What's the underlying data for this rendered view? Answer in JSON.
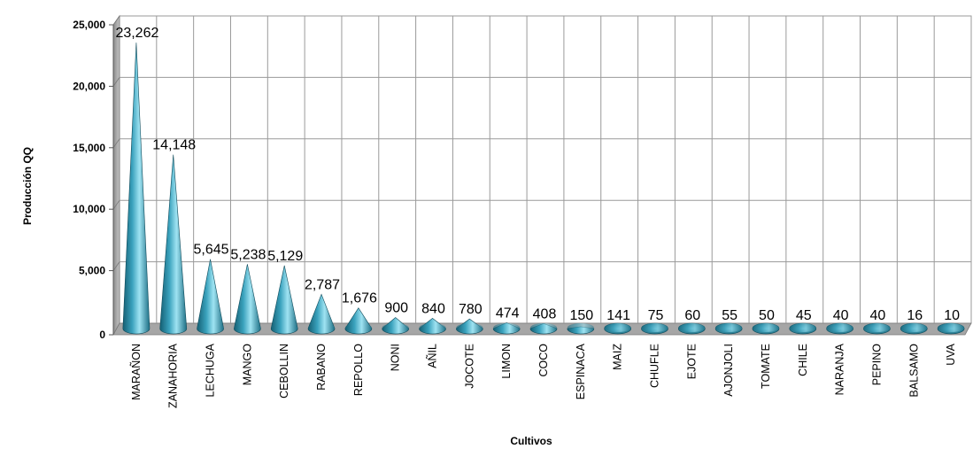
{
  "chart_data": {
    "type": "bar",
    "bar_shape": "cone",
    "xlabel": "Cultivos",
    "ylabel": "Producción QQ",
    "ylim": [
      0,
      25000
    ],
    "yticks": [
      "0",
      "5,000",
      "10,000",
      "15,000",
      "20,000",
      "25,000"
    ],
    "ytick_values": [
      0,
      5000,
      10000,
      15000,
      20000,
      25000
    ],
    "grid": true,
    "categories": [
      "MARAÑON",
      "ZANAHORIA",
      "LECHUGA",
      "MANGO",
      "CEBOLLIN",
      "RABANO",
      "REPOLLO",
      "NONI",
      "AÑIL",
      "JOCOTE",
      "LIMON",
      "COCO",
      "ESPINACA",
      "MAIZ",
      "CHUFLE",
      "EJOTE",
      "AJONJOLI",
      "TOMATE",
      "CHILE",
      "NARANJA",
      "PEPINO",
      "BALSAMO",
      "UVA"
    ],
    "values": [
      23262,
      14148,
      5645,
      5238,
      5129,
      2787,
      1676,
      900,
      840,
      780,
      474,
      408,
      150,
      141,
      75,
      60,
      55,
      50,
      45,
      40,
      40,
      16,
      10
    ],
    "data_labels": [
      "23,262",
      "14,148",
      "5,645",
      "5,238",
      "5,129",
      "2,787",
      "1,676",
      "900",
      "840",
      "780",
      "474",
      "408",
      "150",
      "141",
      "75",
      "60",
      "55",
      "50",
      "45",
      "40",
      "40",
      "16",
      "10"
    ],
    "colors": {
      "cone_light": "#9fe3f2",
      "cone_mid": "#3aa2bd",
      "cone_dark": "#145f73",
      "grid": "#9a9a9a",
      "wall": "#ffffff",
      "side_wall": "#a6a6a6"
    }
  }
}
